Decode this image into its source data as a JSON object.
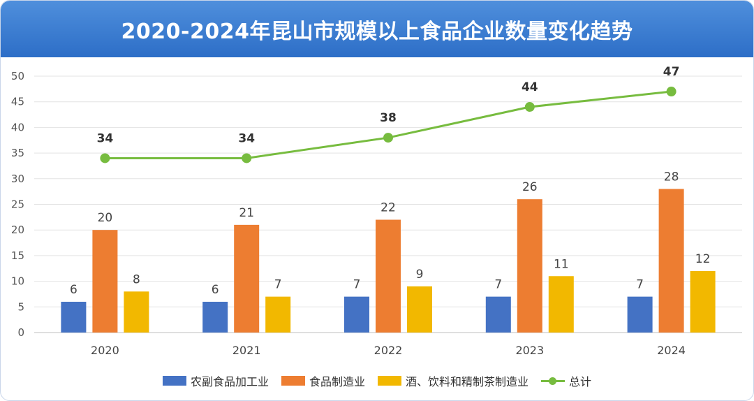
{
  "title": "2020-2024年昆山市规模以上食品企业数量变化趋势",
  "colors": {
    "header": "#2d6ec7",
    "series": [
      "#4472c4",
      "#ed7d31",
      "#f2b800"
    ],
    "total": "#77bc3f"
  },
  "chart_data": {
    "type": "bar",
    "categories": [
      "2020",
      "2021",
      "2022",
      "2023",
      "2024"
    ],
    "series": [
      {
        "name": "农副食品加工业",
        "type": "bar",
        "values": [
          6,
          6,
          7,
          7,
          7
        ]
      },
      {
        "name": "食品制造业",
        "type": "bar",
        "values": [
          20,
          21,
          22,
          26,
          28
        ]
      },
      {
        "name": "酒、饮料和精制茶制造业",
        "type": "bar",
        "values": [
          8,
          7,
          9,
          11,
          12
        ]
      },
      {
        "name": "总计",
        "type": "line",
        "values": [
          34,
          34,
          38,
          44,
          47
        ]
      }
    ],
    "ylim": [
      0,
      50
    ],
    "yticks": [
      0,
      5,
      10,
      15,
      20,
      25,
      30,
      35,
      40,
      45,
      50
    ],
    "grid": true,
    "legend": "bottom"
  }
}
